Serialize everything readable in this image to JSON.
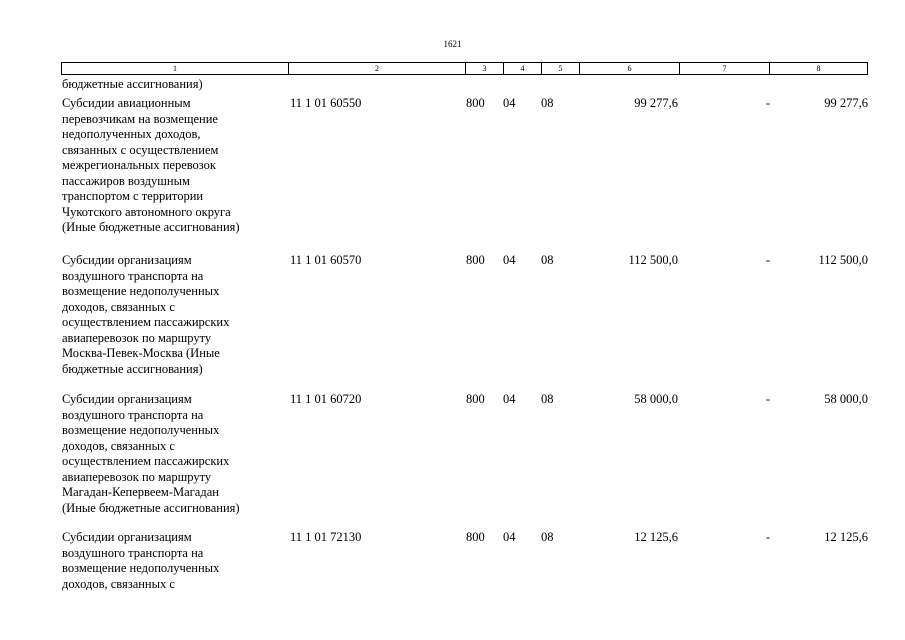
{
  "page_number": "1621",
  "header": {
    "columns": [
      "1",
      "2",
      "3",
      "4",
      "5",
      "6",
      "7",
      "8"
    ]
  },
  "continuation": "бюджетные ассигнования)",
  "rows": [
    {
      "name": "Субсидии авиационным\nперевозчикам на возмещение\nнедополученных доходов,\nсвязанных с осуществлением\nмежрегиональных перевозок\nпассажиров воздушным\nтранспортом с территории\nЧукотского автономного округа\n(Иные бюджетные ассигнования)",
      "code": "11 1 01 60550",
      "vr": "800",
      "rz": "04",
      "pr": "08",
      "sum6": "99 277,6",
      "sum7": "-",
      "sum8": "99 277,6"
    },
    {
      "name": "Субсидии организациям\nвоздушного транспорта на\nвозмещение недополученных\nдоходов, связанных с\nосуществлением пассажирских\nавиаперевозок по маршруту\nМосква-Певек-Москва (Иные\nбюджетные ассигнования)",
      "code": "11 1 01 60570",
      "vr": "800",
      "rz": "04",
      "pr": "08",
      "sum6": "112 500,0",
      "sum7": "-",
      "sum8": "112 500,0"
    },
    {
      "name": "Субсидии организациям\nвоздушного транспорта на\nвозмещение недополученных\nдоходов, связанных с\nосуществлением пассажирских\nавиаперевозок по маршруту\nМагадан-Кепервеем-Магадан\n(Иные бюджетные ассигнования)",
      "code": "11 1 01 60720",
      "vr": "800",
      "rz": "04",
      "pr": "08",
      "sum6": "58 000,0",
      "sum7": "-",
      "sum8": "58 000,0"
    },
    {
      "name": "Субсидии организациям\nвоздушного транспорта на\nвозмещение недополученных\nдоходов, связанных с",
      "code": "11 1 01 72130",
      "vr": "800",
      "rz": "04",
      "pr": "08",
      "sum6": "12 125,6",
      "sum7": "-",
      "sum8": "12 125,6"
    }
  ]
}
